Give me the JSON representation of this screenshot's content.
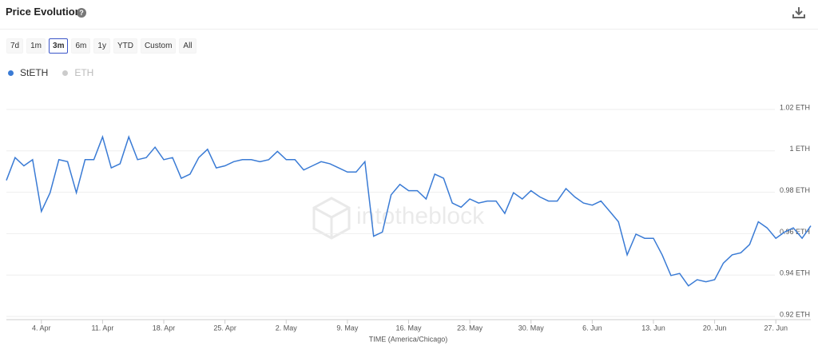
{
  "header": {
    "title": "Price Evolution"
  },
  "ranges": [
    "7d",
    "1m",
    "3m",
    "6m",
    "1y",
    "YTD",
    "Custom",
    "All"
  ],
  "selected_range": "3m",
  "chart_data": {
    "type": "line",
    "watermark": "intotheblock",
    "x": [
      "31. Mar",
      "1. Apr",
      "2. Apr",
      "3. Apr",
      "4. Apr",
      "5. Apr",
      "6. Apr",
      "7. Apr",
      "8. Apr",
      "9. Apr",
      "10. Apr",
      "11. Apr",
      "12. Apr",
      "13. Apr",
      "14. Apr",
      "15. Apr",
      "16. Apr",
      "17. Apr",
      "18. Apr",
      "19. Apr",
      "20. Apr",
      "21. Apr",
      "22. Apr",
      "23. Apr",
      "24. Apr",
      "25. Apr",
      "26. Apr",
      "27. Apr",
      "28. Apr",
      "29. Apr",
      "30. Apr",
      "1. May",
      "2. May",
      "3. May",
      "4. May",
      "5. May",
      "6. May",
      "7. May",
      "8. May",
      "9. May",
      "10. May",
      "11. May",
      "12. May",
      "13. May",
      "14. May",
      "15. May",
      "16. May",
      "17. May",
      "18. May",
      "19. May",
      "20. May",
      "21. May",
      "22. May",
      "23. May",
      "24. May",
      "25. May",
      "26. May",
      "27. May",
      "28. May",
      "29. May",
      "30. May",
      "31. May",
      "1. Jun",
      "2. Jun",
      "3. Jun",
      "4. Jun",
      "5. Jun",
      "6. Jun",
      "7. Jun",
      "8. Jun",
      "9. Jun",
      "10. Jun",
      "11. Jun",
      "12. Jun",
      "13. Jun",
      "14. Jun",
      "15. Jun",
      "16. Jun",
      "17. Jun",
      "18. Jun",
      "19. Jun",
      "20. Jun",
      "21. Jun",
      "22. Jun",
      "23. Jun",
      "24. Jun",
      "25. Jun",
      "26. Jun",
      "27. Jun",
      "28. Jun",
      "29. Jun",
      "30. Jun",
      "1. Jul"
    ],
    "xticks": [
      "4. Apr",
      "11. Apr",
      "18. Apr",
      "25. Apr",
      "2. May",
      "9. May",
      "16. May",
      "23. May",
      "30. May",
      "6. Jun",
      "13. Jun",
      "20. Jun",
      "27. Jun"
    ],
    "xlabel": "TIME (America/Chicago)",
    "series": [
      {
        "name": "StETH",
        "color": "#3a7bd5",
        "visible": true,
        "values": [
          0.985,
          0.996,
          0.992,
          0.995,
          0.97,
          0.979,
          0.995,
          0.994,
          0.979,
          0.995,
          0.995,
          1.006,
          0.991,
          0.993,
          1.006,
          0.995,
          0.996,
          1.001,
          0.995,
          0.996,
          0.986,
          0.988,
          0.996,
          1.0,
          0.991,
          0.992,
          0.994,
          0.995,
          0.995,
          0.994,
          0.995,
          0.999,
          0.995,
          0.995,
          0.99,
          0.992,
          0.994,
          0.993,
          0.991,
          0.989,
          0.989,
          0.994,
          0.958,
          0.96,
          0.978,
          0.983,
          0.98,
          0.98,
          0.976,
          0.988,
          0.986,
          0.974,
          0.972,
          0.976,
          0.974,
          0.975,
          0.975,
          0.969,
          0.979,
          0.976,
          0.98,
          0.977,
          0.975,
          0.975,
          0.981,
          0.977,
          0.974,
          0.973,
          0.975,
          0.97,
          0.965,
          0.949,
          0.959,
          0.957,
          0.957,
          0.949,
          0.939,
          0.94,
          0.934,
          0.937,
          0.936,
          0.937,
          0.945,
          0.949,
          0.95,
          0.954,
          0.965,
          0.962,
          0.957,
          0.96,
          0.962,
          0.957,
          0.963
        ]
      },
      {
        "name": "ETH",
        "color": "#cccccc",
        "visible": false
      }
    ],
    "ylim": [
      0.92,
      1.02
    ],
    "yticks": [
      {
        "value": 0.92,
        "label": "0.92 ETH"
      },
      {
        "value": 0.94,
        "label": "0.94 ETH"
      },
      {
        "value": 0.96,
        "label": "0.96 ETH"
      },
      {
        "value": 0.98,
        "label": "0.98 ETH"
      },
      {
        "value": 1,
        "label": "1 ETH"
      },
      {
        "value": 1.02,
        "label": "1.02 ETH"
      }
    ],
    "grid": true
  }
}
